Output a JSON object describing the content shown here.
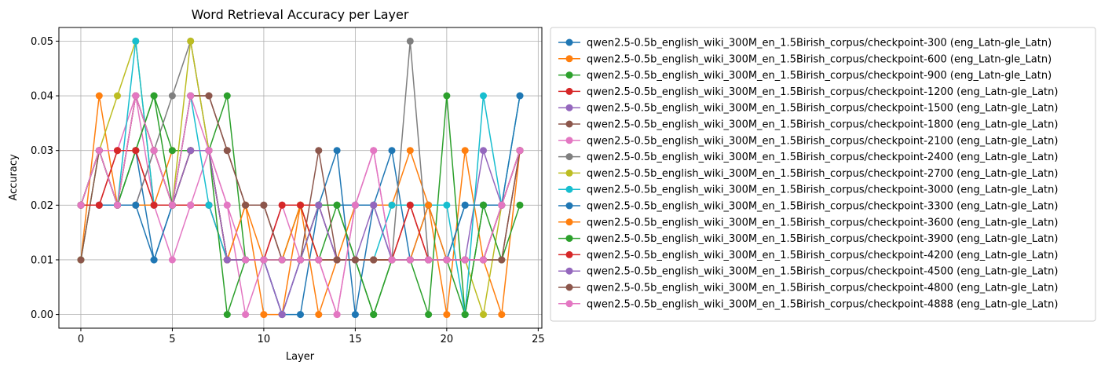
{
  "chart_data": {
    "type": "line",
    "title": "Word Retrieval Accuracy per Layer",
    "xlabel": "Layer",
    "ylabel": "Accuracy",
    "xlim": [
      -1.2,
      25.2
    ],
    "ylim": [
      -0.0025,
      0.0525
    ],
    "xticks": [
      0,
      5,
      10,
      15,
      20,
      25
    ],
    "yticks": [
      0.0,
      0.01,
      0.02,
      0.03,
      0.04,
      0.05
    ],
    "xtick_labels": [
      "0",
      "5",
      "10",
      "15",
      "20",
      "25"
    ],
    "ytick_labels": [
      "0.00",
      "0.01",
      "0.02",
      "0.03",
      "0.04",
      "0.05"
    ],
    "grid": true,
    "legend_position": "outside right",
    "marker": "circle",
    "x": [
      0,
      1,
      2,
      3,
      4,
      5,
      6,
      7,
      8,
      9,
      10,
      11,
      12,
      13,
      14,
      15,
      16,
      17,
      18,
      19,
      20,
      21,
      22,
      23,
      24
    ],
    "series": [
      {
        "name": "qwen2.5-0.5b_english_wiki_300M_en_1.5Birish_corpus/checkpoint-300 (eng_Latn-gle_Latn)",
        "color": "#1f77b4",
        "values": [
          0.02,
          0.02,
          0.02,
          0.03,
          0.01,
          0.02,
          0.02,
          0.02,
          0.01,
          0.01,
          0.01,
          0.0,
          0.0,
          0.02,
          0.03,
          0.0,
          0.02,
          0.03,
          0.01,
          0.01,
          0.01,
          0.02,
          0.02,
          0.02,
          0.03
        ]
      },
      {
        "name": "qwen2.5-0.5b_english_wiki_300M_en_1.5Birish_corpus/checkpoint-600 (eng_Latn-gle_Latn)",
        "color": "#ff7f0e",
        "values": [
          0.01,
          0.04,
          0.02,
          0.02,
          0.02,
          0.03,
          0.03,
          0.03,
          0.01,
          0.02,
          0.0,
          0.0,
          0.02,
          0.0,
          0.01,
          0.02,
          0.02,
          0.02,
          0.03,
          0.02,
          0.0,
          0.03,
          0.01,
          0.0,
          0.03
        ]
      },
      {
        "name": "qwen2.5-0.5b_english_wiki_300M_en_1.5Birish_corpus/checkpoint-900 (eng_Latn-gle_Latn)",
        "color": "#2ca02c",
        "values": [
          0.01,
          0.03,
          0.02,
          0.03,
          0.04,
          0.03,
          0.03,
          0.03,
          0.04,
          0.01,
          0.01,
          0.01,
          0.02,
          0.01,
          0.02,
          0.01,
          0.0,
          0.01,
          0.01,
          0.0,
          0.04,
          0.0,
          0.02,
          0.02,
          0.03
        ]
      },
      {
        "name": "qwen2.5-0.5b_english_wiki_300M_en_1.5Birish_corpus/checkpoint-1200 (eng_Latn-gle_Latn)",
        "color": "#d62728",
        "values": [
          0.02,
          0.02,
          0.03,
          0.03,
          0.02,
          0.02,
          0.02,
          0.02,
          0.01,
          0.01,
          0.01,
          0.02,
          0.02,
          0.02,
          0.01,
          0.01,
          0.01,
          0.01,
          0.02,
          0.01,
          0.01,
          0.01,
          0.01,
          0.02,
          0.03
        ]
      },
      {
        "name": "qwen2.5-0.5b_english_wiki_300M_en_1.5Birish_corpus/checkpoint-1500 (eng_Latn-gle_Latn)",
        "color": "#9467bd",
        "values": [
          0.02,
          0.03,
          0.02,
          0.02,
          0.03,
          0.02,
          0.03,
          0.03,
          0.01,
          0.01,
          0.01,
          0.0,
          0.01,
          0.02,
          0.01,
          0.01,
          0.01,
          0.01,
          0.01,
          0.01,
          0.01,
          0.01,
          0.03,
          0.02,
          0.03
        ]
      },
      {
        "name": "qwen2.5-0.5b_english_wiki_300M_en_1.5Birish_corpus/checkpoint-1800 (eng_Latn-gle_Latn)",
        "color": "#8c564b",
        "values": [
          0.01,
          0.03,
          0.02,
          0.04,
          0.03,
          0.02,
          0.04,
          0.04,
          0.03,
          0.02,
          0.02,
          0.01,
          0.01,
          0.03,
          0.01,
          0.01,
          0.01,
          0.01,
          0.01,
          0.01,
          0.01,
          0.01,
          0.01,
          0.01,
          0.03
        ]
      },
      {
        "name": "qwen2.5-0.5b_english_wiki_300M_en_1.5Birish_corpus/checkpoint-2100 (eng_Latn-gle_Latn)",
        "color": "#e377c2",
        "values": [
          0.02,
          0.03,
          0.03,
          0.04,
          0.02,
          0.01,
          0.02,
          0.03,
          0.02,
          0.0,
          0.01,
          0.02,
          0.01,
          0.01,
          0.0,
          0.02,
          0.03,
          0.01,
          0.01,
          0.01,
          0.01,
          0.01,
          0.01,
          0.02,
          0.03
        ]
      },
      {
        "name": "qwen2.5-0.5b_english_wiki_300M_en_1.5Birish_corpus/checkpoint-2400 (eng_Latn-gle_Latn)",
        "color": "#7f7f7f",
        "values": [
          0.02,
          0.03,
          0.02,
          0.02,
          0.03,
          0.04,
          0.05,
          0.03,
          0.01,
          0.01,
          0.01,
          0.01,
          0.01,
          0.02,
          0.01,
          0.01,
          0.01,
          0.01,
          0.05,
          0.01,
          0.01,
          0.01,
          0.01,
          0.02,
          0.03
        ]
      },
      {
        "name": "qwen2.5-0.5b_english_wiki_300M_en_1.5Birish_corpus/checkpoint-2700 (eng_Latn-gle_Latn)",
        "color": "#bcbd22",
        "values": [
          0.02,
          0.03,
          0.04,
          0.05,
          0.02,
          0.02,
          0.05,
          0.03,
          0.01,
          0.01,
          0.01,
          0.01,
          0.02,
          0.01,
          0.01,
          0.01,
          0.01,
          0.01,
          0.01,
          0.01,
          0.01,
          0.01,
          0.0,
          0.02,
          0.03
        ]
      },
      {
        "name": "qwen2.5-0.5b_english_wiki_300M_en_1.5Birish_corpus/checkpoint-3000 (eng_Latn-gle_Latn)",
        "color": "#17becf",
        "values": [
          0.02,
          0.03,
          0.02,
          0.05,
          0.02,
          0.02,
          0.04,
          0.02,
          0.01,
          0.01,
          0.01,
          0.01,
          0.01,
          0.01,
          0.01,
          0.01,
          0.01,
          0.02,
          0.02,
          0.02,
          0.02,
          0.0,
          0.04,
          0.02,
          0.04
        ]
      },
      {
        "name": "qwen2.5-0.5b_english_wiki_300M_en_1.5Birish_corpus/checkpoint-3300 (eng_Latn-gle_Latn)",
        "color": "#1f77b4",
        "values": [
          0.02,
          0.02,
          0.02,
          0.02,
          0.01,
          0.02,
          0.03,
          0.03,
          0.01,
          0.01,
          0.01,
          0.0,
          0.01,
          0.02,
          0.02,
          0.02,
          0.02,
          0.01,
          0.01,
          0.02,
          0.01,
          0.02,
          0.02,
          0.02,
          0.04
        ]
      },
      {
        "name": "qwen2.5-0.5b_english_wiki_300M_en_1.5Birish_corpus/checkpoint-3600 (eng_Latn-gle_Latn)",
        "color": "#ff7f0e",
        "values": [
          0.02,
          0.03,
          0.02,
          0.04,
          0.03,
          0.02,
          0.03,
          0.03,
          0.01,
          0.02,
          0.01,
          0.01,
          0.02,
          0.01,
          0.01,
          0.01,
          0.01,
          0.01,
          0.01,
          0.02,
          0.01,
          0.01,
          0.01,
          0.02,
          0.03
        ]
      },
      {
        "name": "qwen2.5-0.5b_english_wiki_300M_en_1.5Birish_corpus/checkpoint-3900 (eng_Latn-gle_Latn)",
        "color": "#2ca02c",
        "values": [
          0.02,
          0.03,
          0.02,
          0.03,
          0.04,
          0.02,
          0.03,
          0.03,
          0.0,
          0.01,
          0.01,
          0.01,
          0.01,
          0.02,
          0.02,
          0.01,
          0.0,
          0.01,
          0.01,
          0.01,
          0.01,
          0.0,
          0.02,
          0.01,
          0.02
        ]
      },
      {
        "name": "qwen2.5-0.5b_english_wiki_300M_en_1.5Birish_corpus/checkpoint-4200 (eng_Latn-gle_Latn)",
        "color": "#d62728",
        "values": [
          0.02,
          0.02,
          0.03,
          0.03,
          0.02,
          0.02,
          0.03,
          0.03,
          0.01,
          0.01,
          0.01,
          0.02,
          0.02,
          0.01,
          0.01,
          0.01,
          0.01,
          0.01,
          0.02,
          0.01,
          0.01,
          0.01,
          0.01,
          0.02,
          0.03
        ]
      },
      {
        "name": "qwen2.5-0.5b_english_wiki_300M_en_1.5Birish_corpus/checkpoint-4500 (eng_Latn-gle_Latn)",
        "color": "#9467bd",
        "values": [
          0.02,
          0.03,
          0.02,
          0.04,
          0.03,
          0.02,
          0.03,
          0.03,
          0.01,
          0.01,
          0.01,
          0.0,
          0.01,
          0.02,
          0.01,
          0.01,
          0.02,
          0.01,
          0.01,
          0.01,
          0.01,
          0.01,
          0.01,
          0.02,
          0.03
        ]
      },
      {
        "name": "qwen2.5-0.5b_english_wiki_300M_en_1.5Birish_corpus/checkpoint-4800 (eng_Latn-gle_Latn)",
        "color": "#8c564b",
        "values": [
          0.02,
          0.03,
          0.02,
          0.04,
          0.03,
          0.02,
          0.04,
          0.04,
          0.03,
          0.02,
          0.02,
          0.01,
          0.01,
          0.01,
          0.01,
          0.01,
          0.01,
          0.01,
          0.01,
          0.01,
          0.01,
          0.01,
          0.01,
          0.01,
          0.03
        ]
      },
      {
        "name": "qwen2.5-0.5b_english_wiki_300M_en_1.5Birish_corpus/checkpoint-4888 (eng_Latn-gle_Latn)",
        "color": "#e377c2",
        "values": [
          0.02,
          0.03,
          0.02,
          0.04,
          0.03,
          0.02,
          0.04,
          0.03,
          0.02,
          0.01,
          0.01,
          0.01,
          0.01,
          0.01,
          0.0,
          0.02,
          0.03,
          0.01,
          0.01,
          0.01,
          0.01,
          0.01,
          0.01,
          0.02,
          0.03
        ]
      }
    ]
  }
}
